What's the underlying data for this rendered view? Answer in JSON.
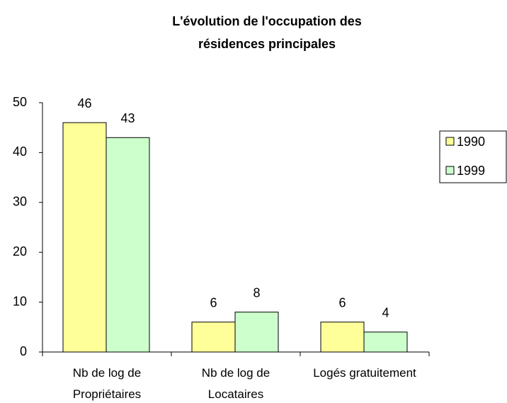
{
  "chart_data": {
    "type": "bar",
    "title": "L'évolution de l'occupation des résidences principales",
    "categories": [
      "Nb de log de Propriétaires",
      "Nb de log de Locataires",
      "Logés gratuitement"
    ],
    "series": [
      {
        "name": "1990",
        "color": "#ffff99",
        "values": [
          46,
          6,
          6
        ]
      },
      {
        "name": "1999",
        "color": "#ccffcc",
        "values": [
          43,
          8,
          4
        ]
      }
    ],
    "ylim": [
      0,
      50
    ],
    "yticks": [
      0,
      10,
      20,
      30,
      40,
      50
    ],
    "legend": "right"
  }
}
